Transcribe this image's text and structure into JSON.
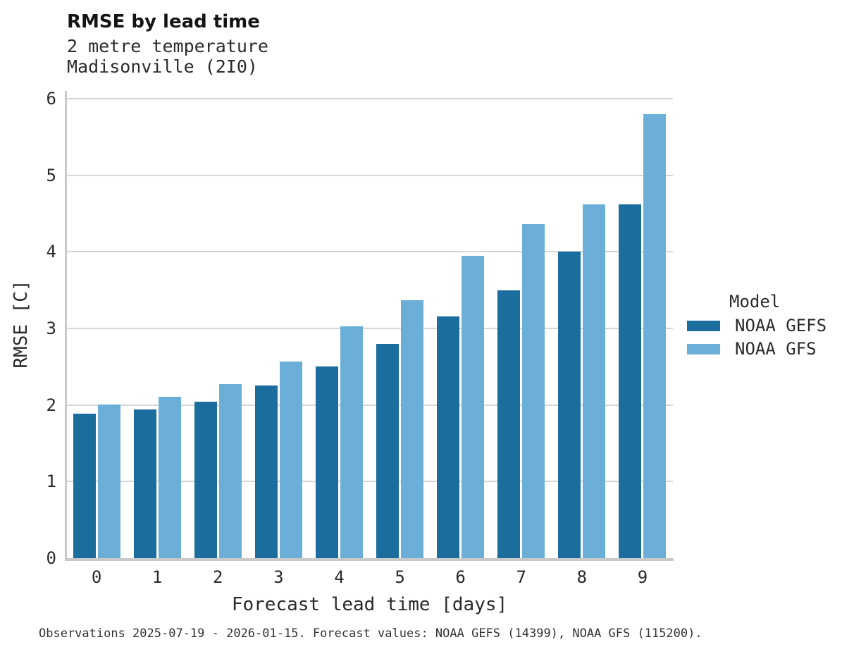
{
  "header": {
    "title": "RMSE by lead time",
    "subtitle_line1": "2 metre temperature",
    "subtitle_line2": "Madisonville (2I0)"
  },
  "chart_data": {
    "type": "bar",
    "title": "RMSE by lead time",
    "subtitle": [
      "2 metre temperature",
      "Madisonville (2I0)"
    ],
    "categories": [
      "0",
      "1",
      "2",
      "3",
      "4",
      "5",
      "6",
      "7",
      "8",
      "9"
    ],
    "series": [
      {
        "name": "NOAA GEFS",
        "color": "#1a6d9c",
        "values": [
          1.89,
          1.94,
          2.04,
          2.25,
          2.5,
          2.8,
          3.16,
          3.5,
          4.0,
          4.62
        ]
      },
      {
        "name": "NOAA GFS",
        "color": "#6bafd8",
        "values": [
          2.01,
          2.11,
          2.27,
          2.57,
          3.03,
          3.37,
          3.95,
          4.36,
          4.62,
          5.8
        ]
      }
    ],
    "xlabel": "Forecast lead time [days]",
    "ylabel": "RMSE [C]",
    "ylim": [
      0,
      6.1
    ],
    "yticks": [
      0,
      1,
      2,
      3,
      4,
      5,
      6
    ],
    "grid": "horizontal",
    "legend": {
      "title": "Model",
      "position": "right"
    }
  },
  "legend": {
    "title": "Model",
    "entries": [
      "NOAA GEFS",
      "NOAA GFS"
    ]
  },
  "footer": {
    "caption": "Observations 2025-07-19 - 2026-01-15. Forecast values: NOAA GEFS (14399), NOAA GFS (115200)."
  },
  "colors": {
    "gefs_bar": "#1a6d9c",
    "gfs_bar": "#6bafd8",
    "gridline": "#d6d6d6",
    "spine": "#c9c9c9",
    "text": "#2a2a2a"
  }
}
